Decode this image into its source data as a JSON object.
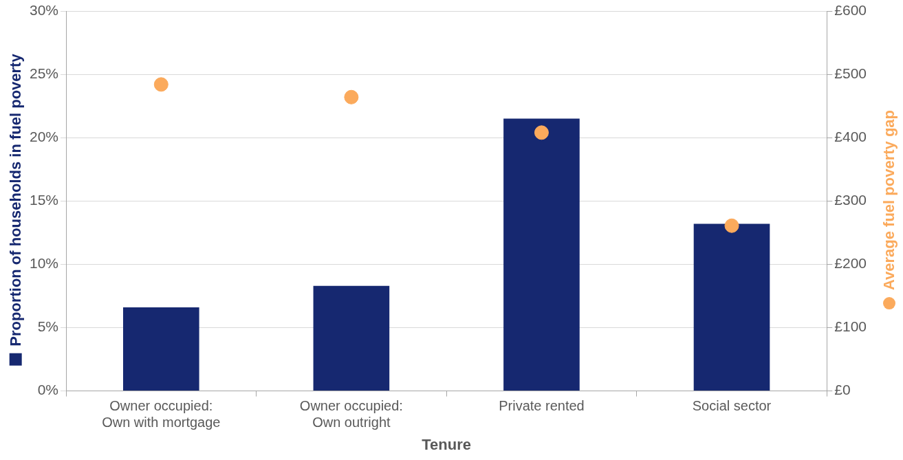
{
  "chart_data": {
    "type": "bar",
    "xlabel": "Tenure",
    "ylabel": "Proportion of households in fuel poverty",
    "y2label": "Average fuel poverty gap",
    "categories": [
      "Owner occupied:\nOwn with mortgage",
      "Owner occupied:\nOwn outright",
      "Private rented",
      "Social sector"
    ],
    "series": [
      {
        "color": "#162870",
        "values": [
          6.6,
          8.3,
          21.5,
          13.2
        ]
      },
      {
        "type": "scatter",
        "axis": "y2",
        "marker": "circle",
        "color": "#fbaa5c",
        "values": [
          484,
          464,
          408,
          261
        ]
      }
    ],
    "ylim": [
      0,
      30
    ],
    "yticks": [
      {
        "value": 0,
        "label": "0%"
      },
      {
        "value": 5,
        "label": "5%"
      },
      {
        "value": 10,
        "label": "10%"
      },
      {
        "value": 15,
        "label": "15%"
      },
      {
        "value": 20,
        "label": "20%"
      },
      {
        "value": 25,
        "label": "25%"
      },
      {
        "value": 30,
        "label": "30%"
      }
    ],
    "y2lim": [
      0,
      600
    ],
    "y2ticks": [
      {
        "value": 0,
        "label": "£0"
      },
      {
        "value": 100,
        "label": "£100"
      },
      {
        "value": 200,
        "label": "£200"
      },
      {
        "value": 300,
        "label": "£300"
      },
      {
        "value": 400,
        "label": "£400"
      },
      {
        "value": 500,
        "label": "£500"
      },
      {
        "value": 600,
        "label": "£600"
      }
    ],
    "grid": "y",
    "legend": false
  }
}
